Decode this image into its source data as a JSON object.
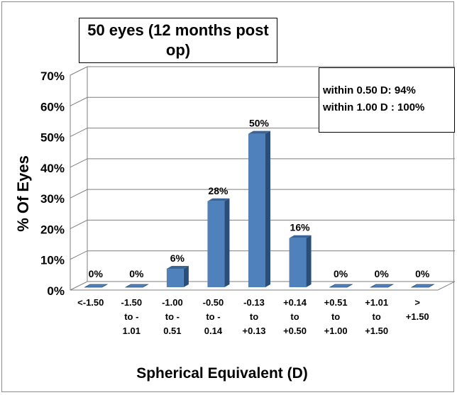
{
  "chart_data": {
    "type": "bar",
    "title": "50 eyes (12 months post op)",
    "stats": [
      "within 0.50 D: 94%",
      "within 1.00 D : 100%"
    ],
    "xlabel": "Spherical Equivalent (D)",
    "ylabel": "% Of Eyes",
    "categories": [
      [
        "<-1.50"
      ],
      [
        "-1.50",
        "to -",
        "1.01"
      ],
      [
        "-1.00",
        "to -",
        "0.51"
      ],
      [
        "-0.50",
        "to -",
        "0.14"
      ],
      [
        "-0.13",
        "to",
        "+0.13"
      ],
      [
        "+0.14",
        "to",
        "+0.50"
      ],
      [
        "+0.51",
        "to",
        "+1.00"
      ],
      [
        "+1.01",
        "to",
        "+1.50"
      ],
      [
        ">",
        "+1.50"
      ]
    ],
    "values": [
      0,
      0,
      6,
      28,
      50,
      16,
      0,
      0,
      0
    ],
    "data_labels": [
      "0%",
      "0%",
      "6%",
      "28%",
      "50%",
      "16%",
      "0%",
      "0%",
      "0%"
    ],
    "yticks": [
      "0%",
      "10%",
      "20%",
      "30%",
      "40%",
      "50%",
      "60%",
      "70%"
    ],
    "ylim": [
      0,
      70
    ],
    "grid": true,
    "colors": {
      "bar_front": "#4f81bd",
      "bar_side": "#2c4d75",
      "bar_top": "#3a6396",
      "grid": "#7f7f7f"
    }
  }
}
